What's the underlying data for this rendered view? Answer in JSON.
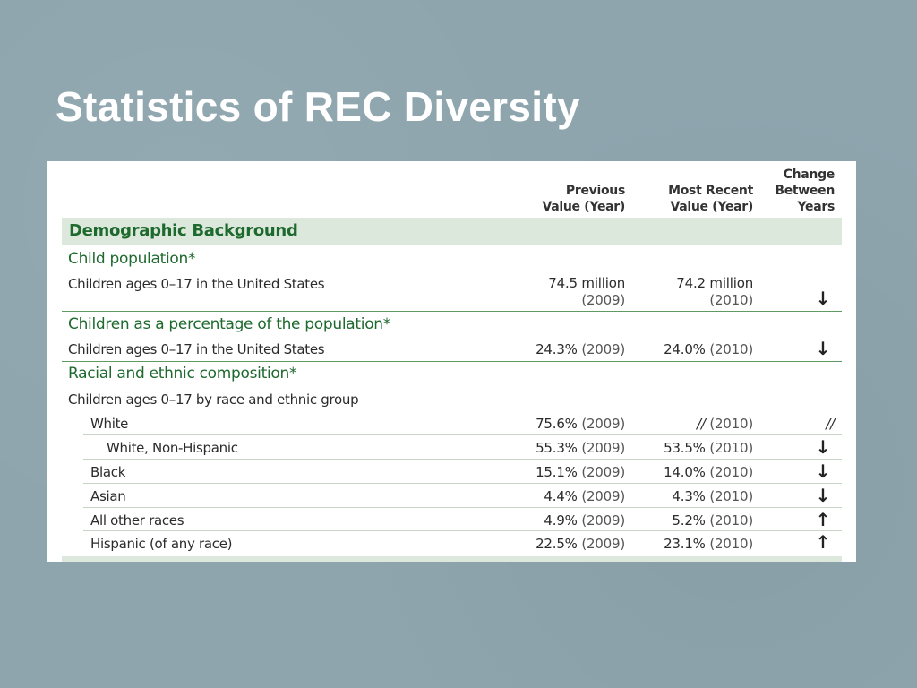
{
  "slide": {
    "title": "Statistics of REC Diversity"
  },
  "table": {
    "columns": {
      "previous": [
        "Previous",
        "Value (Year)"
      ],
      "recent": [
        "Most Recent",
        "Value (Year)"
      ],
      "change": [
        "Change",
        "Between",
        "Years"
      ]
    },
    "band_label": "Demographic Background",
    "sections": [
      {
        "title": "Child population*"
      },
      {
        "title": "Children as a percentage of the population*"
      },
      {
        "title": "Racial and ethnic composition*"
      }
    ],
    "rows": [
      {
        "label": "Children ages 0–17 in the United States",
        "prev_value": "74.5 million",
        "prev_year": "(2009)",
        "recent_value": "74.2 million",
        "recent_year": "(2010)",
        "change": "↓"
      },
      {
        "label": "Children ages 0–17 in the United States",
        "prev_value": "24.3%",
        "prev_year": "(2009)",
        "recent_value": "24.0%",
        "recent_year": "(2010)",
        "change": "↓"
      },
      {
        "label": "Children ages 0–17 by race and ethnic group"
      },
      {
        "label": "White",
        "prev_value": "75.6%",
        "prev_year": "(2009)",
        "recent_value": "//",
        "recent_year": "(2010)",
        "change": "//"
      },
      {
        "label": "White, Non-Hispanic",
        "prev_value": "55.3%",
        "prev_year": "(2009)",
        "recent_value": "53.5%",
        "recent_year": "(2010)",
        "change": "↓"
      },
      {
        "label": "Black",
        "prev_value": "15.1%",
        "prev_year": "(2009)",
        "recent_value": "14.0%",
        "recent_year": "(2010)",
        "change": "↓"
      },
      {
        "label": "Asian",
        "prev_value": "4.4%",
        "prev_year": "(2009)",
        "recent_value": "4.3%",
        "recent_year": "(2010)",
        "change": "↓"
      },
      {
        "label": "All other races",
        "prev_value": "4.9%",
        "prev_year": "(2009)",
        "recent_value": "5.2%",
        "recent_year": "(2010)",
        "change": "↑"
      },
      {
        "label": "Hispanic (of any race)",
        "prev_value": "22.5%",
        "prev_year": "(2009)",
        "recent_value": "23.1%",
        "recent_year": "(2010)",
        "change": "↑"
      }
    ]
  }
}
